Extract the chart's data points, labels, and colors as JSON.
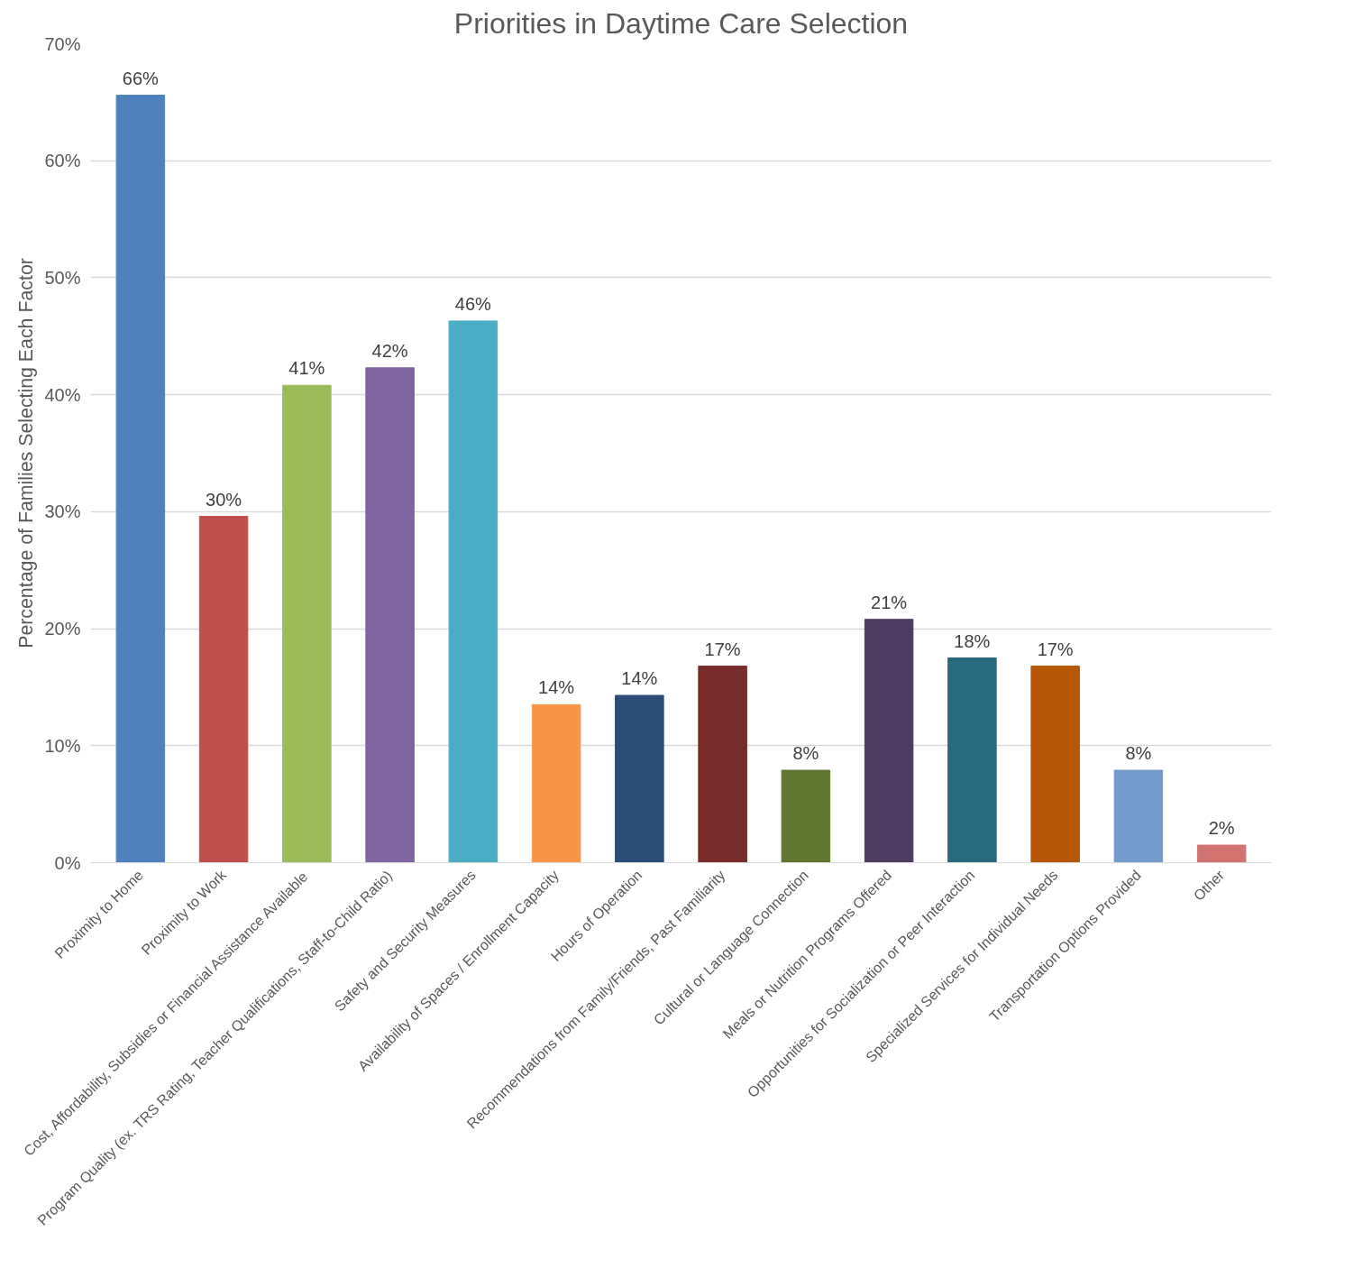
{
  "chart_data": {
    "type": "bar",
    "title": "Priorities in Daytime Care Selection",
    "ylabel": "Percentage of Families Selecting Each Factor",
    "categories": [
      "Proximity to Home",
      "Proximity to Work",
      "Cost, Affordability, Subsidies or Financial Assistance Available",
      "Program Quality (ex. TRS Rating, Teacher Qualifications, Staff-to-Child Ratio)",
      "Safety and Security Measures",
      "Availability of Spaces / Enrollment Capacity",
      "Hours of Operation",
      "Recommendations from Family/Friends, Past Familiarity",
      "Cultural or Language Connection",
      "Meals or Nutrition Programs Offered",
      "Opportunities for Socialization or Peer Interaction",
      "Specialized Services for Individual Needs",
      "Transportation Options Provided",
      "Other"
    ],
    "values": [
      65.6,
      29.6,
      40.8,
      42.3,
      46.3,
      13.5,
      14.3,
      16.8,
      7.9,
      20.8,
      17.5,
      16.8,
      7.9,
      1.5
    ],
    "value_labels": [
      "66%",
      "30%",
      "41%",
      "42%",
      "46%",
      "14%",
      "14%",
      "17%",
      "8%",
      "21%",
      "18%",
      "17%",
      "8%",
      "2%"
    ],
    "colors": [
      "#4f81bd",
      "#c0504d",
      "#9bbb59",
      "#8064a2",
      "#4bacc6",
      "#f79646",
      "#2c4d75",
      "#772c2a",
      "#5f7530",
      "#4d3b62",
      "#276a7c",
      "#b65708",
      "#729aca",
      "#d07371"
    ],
    "ylim": [
      0,
      70
    ],
    "yticks": [
      {
        "value": 0,
        "label": "0%"
      },
      {
        "value": 10,
        "label": "10%"
      },
      {
        "value": 20,
        "label": "20%"
      },
      {
        "value": 30,
        "label": "30%"
      },
      {
        "value": 40,
        "label": "40%"
      },
      {
        "value": 50,
        "label": "50%"
      },
      {
        "value": 60,
        "label": "60%"
      },
      {
        "value": 70,
        "label": "70%"
      }
    ],
    "grid": "y"
  }
}
